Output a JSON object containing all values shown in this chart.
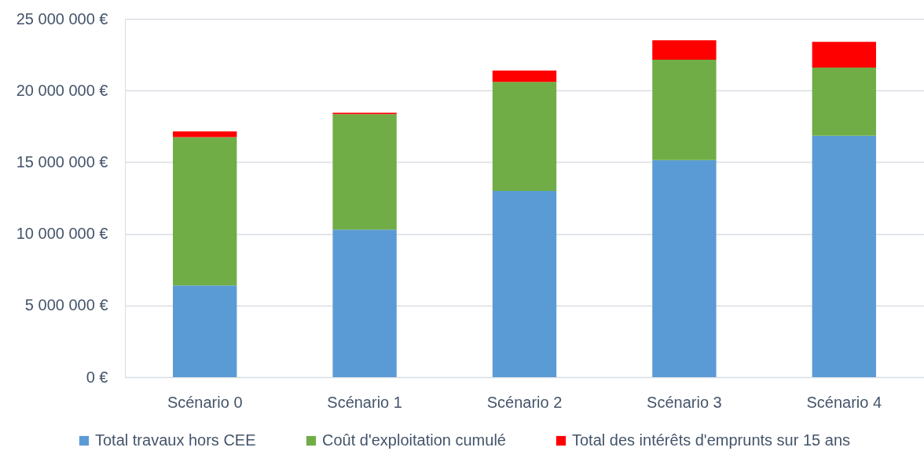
{
  "chart_data": {
    "type": "bar",
    "stacked": true,
    "categories": [
      "Scénario 0",
      "Scénario 1",
      "Scénario 2",
      "Scénario 3",
      "Scénario 4"
    ],
    "series": [
      {
        "name": "Total travaux hors CEE",
        "color": "#5b9bd5",
        "values": [
          6400000,
          10300000,
          13000000,
          15150000,
          16850000
        ]
      },
      {
        "name": "Coût d'exploitation cumulé",
        "color": "#70ad47",
        "values": [
          10350000,
          8050000,
          7600000,
          7000000,
          4750000
        ]
      },
      {
        "name": "Total des intérêts d'emprunts sur 15 ans",
        "color": "#ff0000",
        "values": [
          400000,
          100000,
          800000,
          1350000,
          1800000
        ]
      }
    ],
    "ylim": [
      0,
      25000000
    ],
    "yticks": [
      {
        "value": 0,
        "label": "0 €"
      },
      {
        "value": 5000000,
        "label": "5 000 000 €"
      },
      {
        "value": 10000000,
        "label": "10 000 000 €"
      },
      {
        "value": 15000000,
        "label": "15 000 000 €"
      },
      {
        "value": 20000000,
        "label": "20 000 000 €"
      },
      {
        "value": 25000000,
        "label": "25 000 000 €"
      }
    ],
    "grid": "y",
    "legend": "bottom"
  }
}
